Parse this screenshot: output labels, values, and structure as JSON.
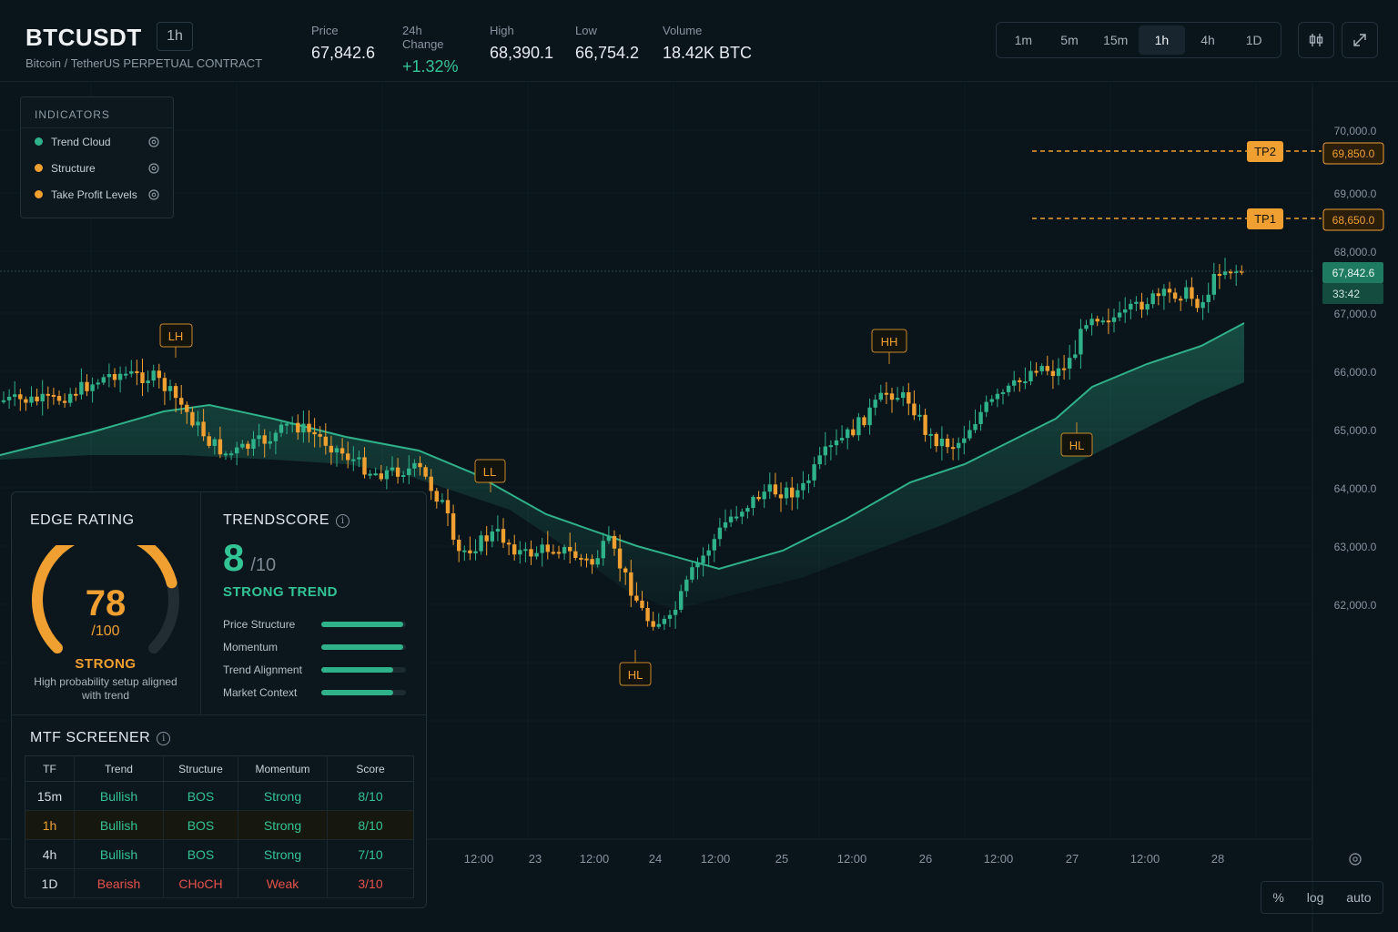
{
  "header": {
    "symbol": "BTCUSDT",
    "interval_badge": "1h",
    "subtitle": "Bitcoin / TetherUS PERPETUAL CONTRACT",
    "stats": [
      {
        "label": "Price",
        "value": "67,842.6"
      },
      {
        "label": "24h Change",
        "value": "+1.32%"
      },
      {
        "label": "High",
        "value": "68,390.1"
      },
      {
        "label": "Low",
        "value": "66,754.2"
      },
      {
        "label": "Volume",
        "value": "18.42K BTC"
      }
    ],
    "timeframes": [
      "1m",
      "5m",
      "15m",
      "1h",
      "4h",
      "1D"
    ],
    "active_timeframe": "1h",
    "icons": [
      "candlestick-icon",
      "expand-icon"
    ]
  },
  "indicators": {
    "title": "INDICATORS",
    "items": [
      {
        "label": "Trend Cloud",
        "color": "#2fb28a"
      },
      {
        "label": "Structure",
        "color": "#f0a030"
      },
      {
        "label": "Take Profit Levels",
        "color": "#f0a030"
      }
    ]
  },
  "chart": {
    "y_ticks": [
      "70,000.0",
      "69,000.0",
      "68,000.0",
      "67,000.0",
      "66,000.0",
      "65,000.0",
      "64,000.0",
      "63,000.0",
      "62,000.0"
    ],
    "x_ticks": [
      "12:00",
      "23",
      "12:00",
      "24",
      "12:00",
      "25",
      "12:00",
      "26",
      "12:00",
      "27",
      "12:00",
      "28"
    ],
    "tp_levels": [
      {
        "label": "TP2",
        "value": "69,850.0"
      },
      {
        "label": "TP1",
        "value": "68,650.0"
      }
    ],
    "current_price": "67,842.6",
    "countdown": "33:42",
    "structure_labels": [
      "LH",
      "LL",
      "HL",
      "HH",
      "HL"
    ],
    "colors": {
      "bull": "#2fb28a",
      "bear": "#f0a030",
      "cloud": "#2fb28a",
      "tp": "#f0a030"
    },
    "scale_buttons": [
      "%",
      "log",
      "auto"
    ]
  },
  "edge": {
    "title": "EDGE RATING",
    "value": "78",
    "max": "/100",
    "score": 78,
    "label": "STRONG",
    "description": "High probability setup aligned with trend"
  },
  "trendscore": {
    "title": "TRENDSCORE",
    "value": "8",
    "max": "/10",
    "label": "STRONG TREND",
    "metrics": [
      {
        "label": "Price Structure",
        "level": 0.97
      },
      {
        "label": "Momentum",
        "level": 0.97
      },
      {
        "label": "Trend Alignment",
        "level": 0.85
      },
      {
        "label": "Market Context",
        "level": 0.85
      }
    ]
  },
  "mtf": {
    "title": "MTF SCREENER",
    "columns": [
      "TF",
      "Trend",
      "Structure",
      "Momentum",
      "Score"
    ],
    "rows": [
      {
        "tf": "15m",
        "trend": "Bullish",
        "structure": "BOS",
        "momentum": "Strong",
        "score": "8/10"
      },
      {
        "tf": "1h",
        "trend": "Bullish",
        "structure": "BOS",
        "momentum": "Strong",
        "score": "8/10"
      },
      {
        "tf": "4h",
        "trend": "Bullish",
        "structure": "BOS",
        "momentum": "Strong",
        "score": "7/10"
      },
      {
        "tf": "1D",
        "trend": "Bearish",
        "structure": "CHoCH",
        "momentum": "Weak",
        "score": "3/10"
      }
    ]
  }
}
